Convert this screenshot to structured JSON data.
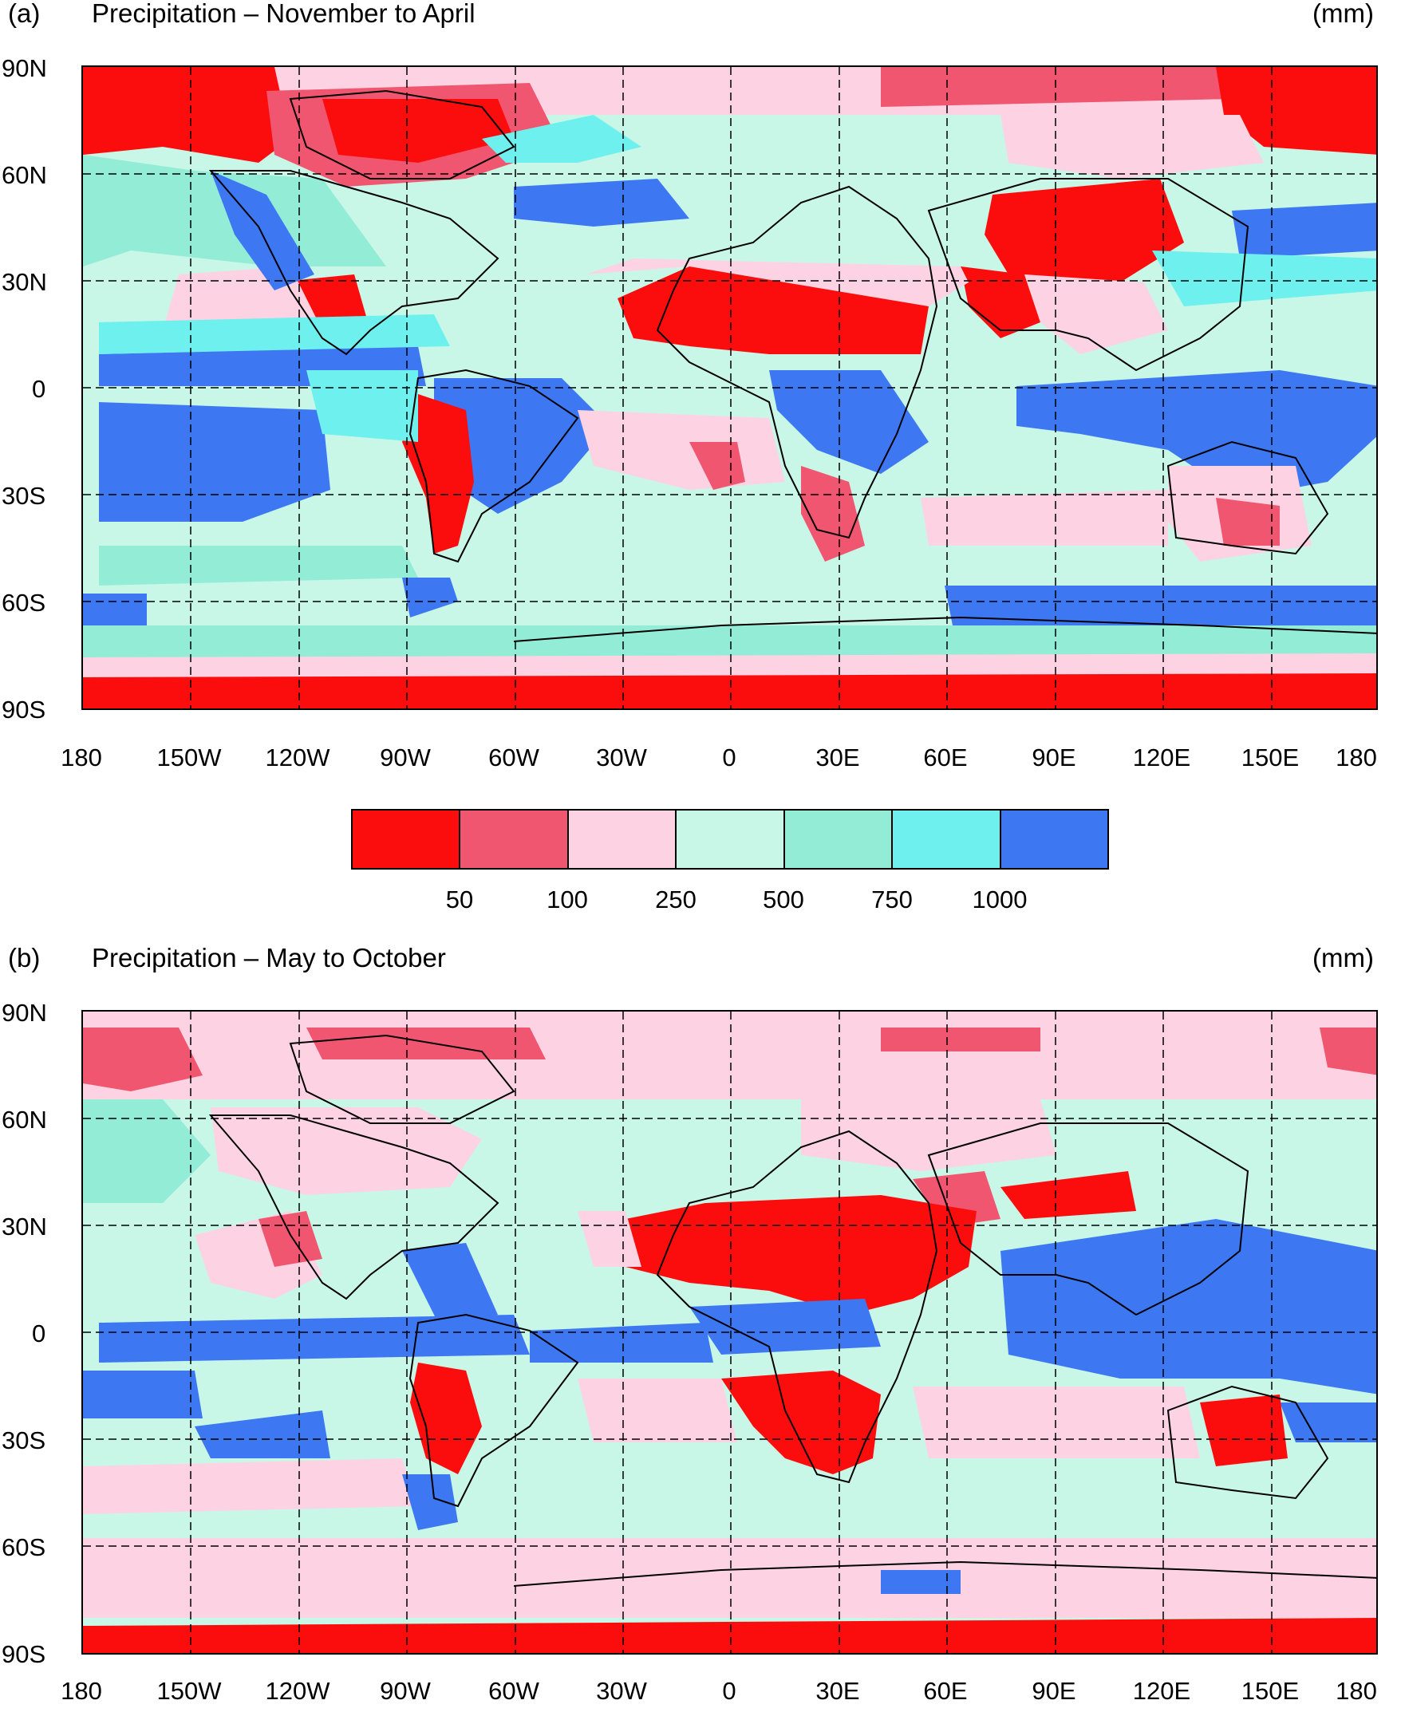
{
  "colors": {
    "c1": "#fb0d0d",
    "c2": "#f0566f",
    "c3": "#fdd3e3",
    "c4": "#c8f7e8",
    "c5": "#93ecd6",
    "c6": "#6df0ee",
    "c7": "#3d78f2",
    "grid": "#000000"
  },
  "lat_ticks": [
    "90N",
    "60N",
    "30N",
    "0",
    "30S",
    "60S",
    "90S"
  ],
  "lon_ticks": [
    "180",
    "150W",
    "120W",
    "90W",
    "60W",
    "30W",
    "0",
    "30E",
    "60E",
    "90E",
    "120E",
    "150E",
    "180"
  ],
  "colorbar": {
    "labels": [
      "50",
      "100",
      "250",
      "500",
      "750",
      "1000"
    ]
  },
  "panels": [
    {
      "label": "(a)",
      "title": "Precipitation – November to April",
      "unit": "(mm)"
    },
    {
      "label": "(b)",
      "title": "Precipitation – May to October",
      "unit": "(mm)"
    }
  ]
}
